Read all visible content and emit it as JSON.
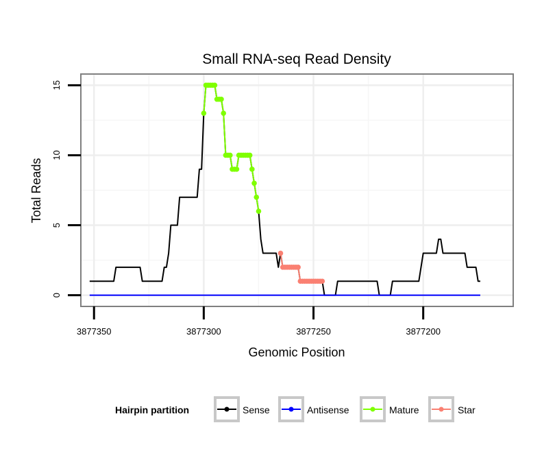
{
  "chart_data": {
    "type": "line",
    "title": "Small RNA-seq Read Density",
    "xlabel": "Genomic Position",
    "ylabel": "Total Reads",
    "x_reversed": true,
    "xlim": [
      3877356,
      3877159
    ],
    "ylim": [
      -0.8,
      15.8
    ],
    "x_ticks": [
      3877350,
      3877300,
      3877250,
      3877200
    ],
    "x_tick_labels": [
      "3877350",
      "3877300",
      "3877250",
      "3877200"
    ],
    "y_ticks": [
      0,
      5,
      10,
      15
    ],
    "y_tick_labels": [
      "0",
      "5",
      "10",
      "15"
    ],
    "grid": true,
    "legend": {
      "title": "Hairpin partition",
      "position": "bottom",
      "entries": [
        "Sense",
        "Antisense",
        "Mature",
        "Star"
      ]
    },
    "series": [
      {
        "name": "Sense",
        "color": "#000000",
        "style": "line",
        "points": [
          [
            3877352,
            1
          ],
          [
            3877341,
            1
          ],
          [
            3877340,
            2
          ],
          [
            3877329,
            2
          ],
          [
            3877328,
            1
          ],
          [
            3877319,
            1
          ],
          [
            3877318,
            2
          ],
          [
            3877317,
            2
          ],
          [
            3877316,
            3
          ],
          [
            3877315,
            5
          ],
          [
            3877312,
            5
          ],
          [
            3877311,
            7
          ],
          [
            3877303,
            7
          ],
          [
            3877302,
            9
          ],
          [
            3877301,
            9
          ],
          [
            3877300,
            13
          ],
          [
            3877299,
            15
          ],
          [
            3877295,
            15
          ],
          [
            3877294,
            14
          ],
          [
            3877292,
            14
          ],
          [
            3877291,
            13
          ],
          [
            3877290,
            10
          ],
          [
            3877288,
            10
          ],
          [
            3877287,
            9
          ],
          [
            3877285,
            9
          ],
          [
            3877284,
            10
          ],
          [
            3877279,
            10
          ],
          [
            3877278,
            9
          ],
          [
            3877277,
            8
          ],
          [
            3877276,
            7
          ],
          [
            3877275,
            6
          ],
          [
            3877274,
            4
          ],
          [
            3877273,
            3
          ],
          [
            3877267,
            3
          ],
          [
            3877266,
            2
          ],
          [
            3877265,
            3
          ],
          [
            3877264,
            2
          ],
          [
            3877257,
            2
          ],
          [
            3877256,
            1
          ],
          [
            3877246,
            1
          ],
          [
            3877245,
            0
          ],
          [
            3877240,
            0
          ],
          [
            3877239,
            1
          ],
          [
            3877221,
            1
          ],
          [
            3877220,
            0
          ],
          [
            3877215,
            0
          ],
          [
            3877214,
            1
          ],
          [
            3877202,
            1
          ],
          [
            3877201,
            2
          ],
          [
            3877200,
            3
          ],
          [
            3877194,
            3
          ],
          [
            3877193,
            4
          ],
          [
            3877192,
            4
          ],
          [
            3877191,
            3
          ],
          [
            3877181,
            3
          ],
          [
            3877180,
            2
          ],
          [
            3877176,
            2
          ],
          [
            3877175,
            1
          ],
          [
            3877174,
            1
          ]
        ]
      },
      {
        "name": "Antisense",
        "color": "#0000ff",
        "style": "line",
        "points": [
          [
            3877352,
            0
          ],
          [
            3877174,
            0
          ]
        ]
      },
      {
        "name": "Mature",
        "color": "#7fff00",
        "style": "line+points",
        "points": [
          [
            3877300,
            13
          ],
          [
            3877299,
            15
          ],
          [
            3877298,
            15
          ],
          [
            3877297,
            15
          ],
          [
            3877296,
            15
          ],
          [
            3877295,
            15
          ],
          [
            3877294,
            14
          ],
          [
            3877293,
            14
          ],
          [
            3877292,
            14
          ],
          [
            3877291,
            13
          ],
          [
            3877290,
            10
          ],
          [
            3877289,
            10
          ],
          [
            3877288,
            10
          ],
          [
            3877287,
            9
          ],
          [
            3877286,
            9
          ],
          [
            3877285,
            9
          ],
          [
            3877284,
            10
          ],
          [
            3877283,
            10
          ],
          [
            3877282,
            10
          ],
          [
            3877281,
            10
          ],
          [
            3877280,
            10
          ],
          [
            3877279,
            10
          ],
          [
            3877278,
            9
          ],
          [
            3877277,
            8
          ],
          [
            3877276,
            7
          ],
          [
            3877275,
            6
          ]
        ]
      },
      {
        "name": "Star",
        "color": "#fa8072",
        "style": "line+points",
        "points": [
          [
            3877265,
            3
          ],
          [
            3877264,
            2
          ],
          [
            3877263,
            2
          ],
          [
            3877262,
            2
          ],
          [
            3877261,
            2
          ],
          [
            3877260,
            2
          ],
          [
            3877259,
            2
          ],
          [
            3877258,
            2
          ],
          [
            3877257,
            2
          ],
          [
            3877256,
            1
          ],
          [
            3877255,
            1
          ],
          [
            3877254,
            1
          ],
          [
            3877253,
            1
          ],
          [
            3877252,
            1
          ],
          [
            3877251,
            1
          ],
          [
            3877250,
            1
          ],
          [
            3877249,
            1
          ],
          [
            3877248,
            1
          ],
          [
            3877247,
            1
          ],
          [
            3877246,
            1
          ]
        ]
      }
    ]
  }
}
